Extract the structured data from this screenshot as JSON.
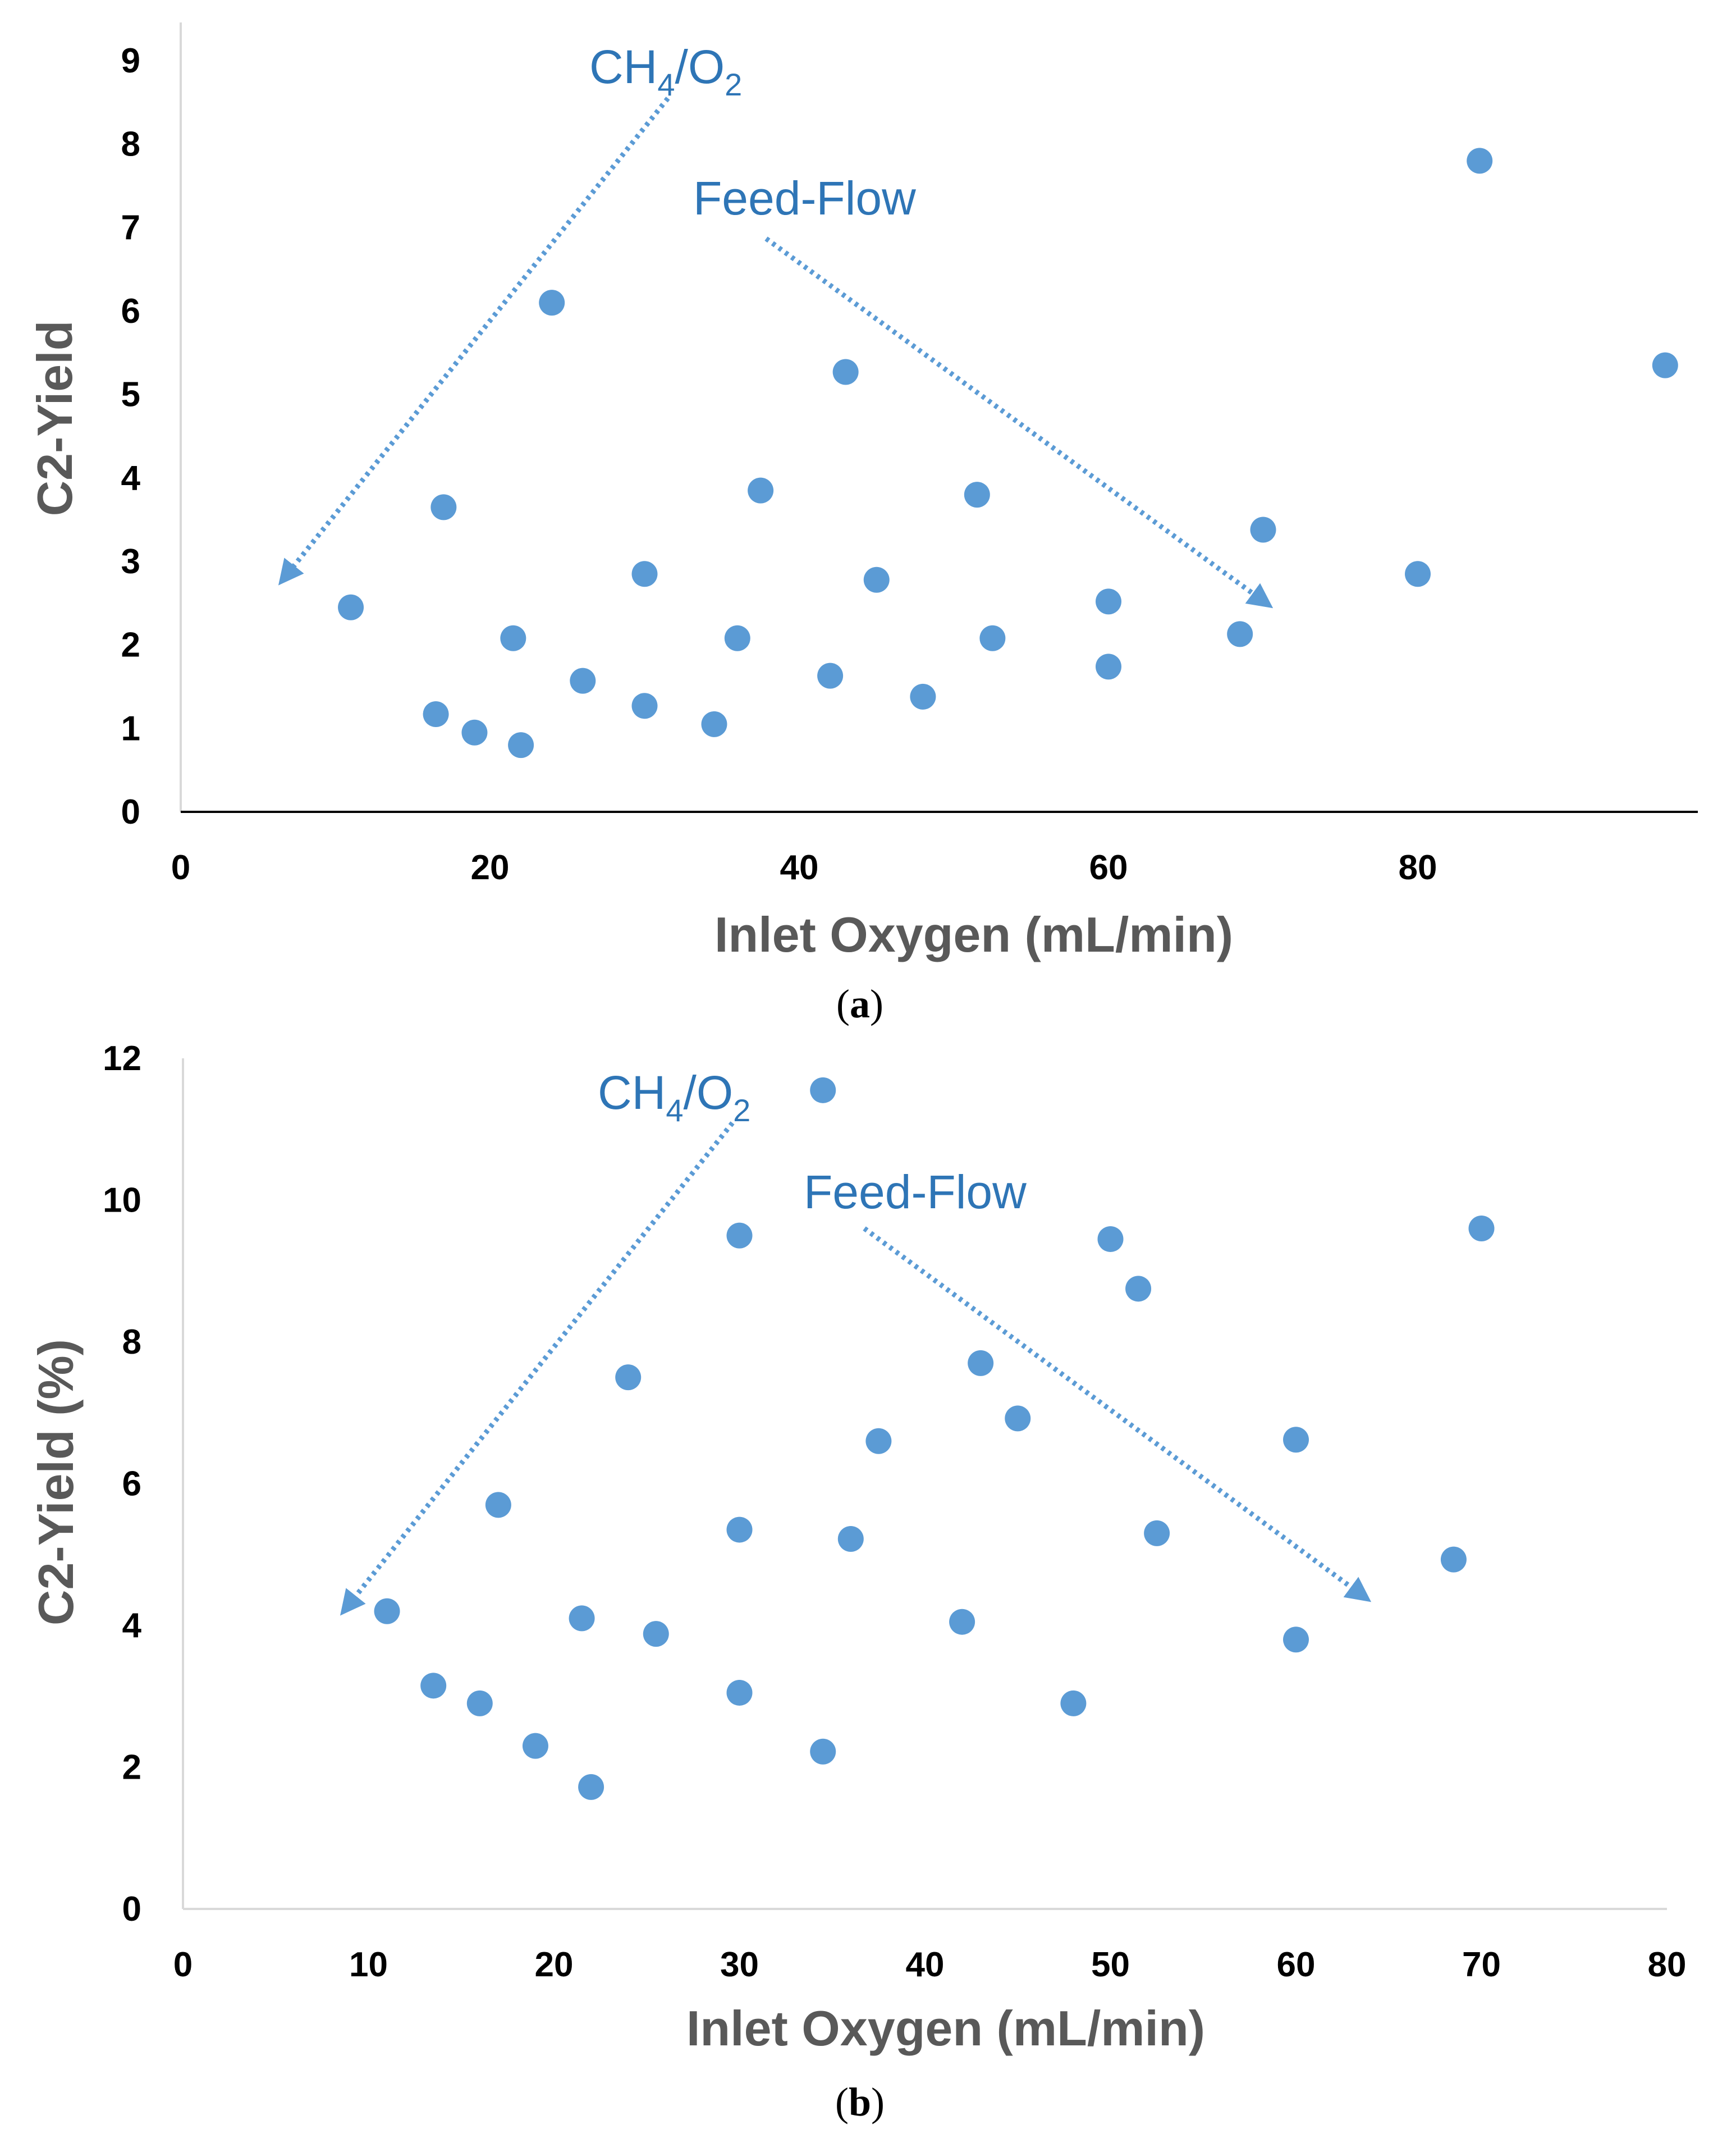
{
  "chart_data": [
    {
      "type": "scatter",
      "panel_label": "a",
      "xlabel": "Inlet Oxygen (mL/min)",
      "ylabel": "C2-Yield",
      "xlim": [
        0,
        98
      ],
      "ylim": [
        0,
        9
      ],
      "x_ticks": [
        "0",
        "20",
        "40",
        "60",
        "80"
      ],
      "y_ticks": [
        "0",
        "1",
        "2",
        "3",
        "4",
        "5",
        "6",
        "7",
        "8",
        "9"
      ],
      "color": "#5B9BD5",
      "annotations": [
        {
          "id": "ch4-o2",
          "base": "CH",
          "sub1": "4",
          "mid": "/O",
          "sub2": "2"
        },
        {
          "id": "feed-flow",
          "text": "Feed-Flow"
        }
      ],
      "series": [
        {
          "name": "C2-Yield",
          "points": [
            [
              11,
              2.45
            ],
            [
              16.5,
              1.17
            ],
            [
              17,
              3.65
            ],
            [
              19,
              0.95
            ],
            [
              21.5,
              2.08
            ],
            [
              22,
              0.8
            ],
            [
              24,
              6.1
            ],
            [
              26,
              1.57
            ],
            [
              30,
              2.85
            ],
            [
              30,
              1.27
            ],
            [
              34.5,
              1.05
            ],
            [
              36,
              2.08
            ],
            [
              37.5,
              3.85
            ],
            [
              42,
              1.63
            ],
            [
              43,
              5.27
            ],
            [
              45,
              2.78
            ],
            [
              48,
              1.38
            ],
            [
              51.5,
              3.8
            ],
            [
              52.5,
              2.08
            ],
            [
              60,
              2.52
            ],
            [
              60,
              1.74
            ],
            [
              68.5,
              2.13
            ],
            [
              70,
              3.38
            ],
            [
              80,
              2.85
            ],
            [
              84,
              7.8
            ],
            [
              96,
              5.35
            ]
          ]
        }
      ]
    },
    {
      "type": "scatter",
      "panel_label": "b",
      "xlabel": "Inlet Oxygen (mL/min)",
      "ylabel": "C2-Yield (%)",
      "xlim": [
        0,
        80
      ],
      "ylim": [
        0,
        12
      ],
      "x_ticks": [
        "0",
        "10",
        "20",
        "30",
        "40",
        "50",
        "60",
        "70",
        "80"
      ],
      "y_ticks": [
        "0",
        "2",
        "4",
        "6",
        "8",
        "10",
        "12"
      ],
      "color": "#5B9BD5",
      "annotations": [
        {
          "id": "ch4-o2",
          "base": "CH",
          "sub1": "4",
          "mid": "/O",
          "sub2": "2"
        },
        {
          "id": "feed-flow",
          "text": "Feed-Flow"
        }
      ],
      "series": [
        {
          "name": "C2-Yield (%)",
          "points": [
            [
              11,
              4.2
            ],
            [
              13.5,
              3.15
            ],
            [
              16,
              2.9
            ],
            [
              17,
              5.7
            ],
            [
              19,
              2.3
            ],
            [
              21.5,
              4.1
            ],
            [
              22,
              1.72
            ],
            [
              24,
              7.5
            ],
            [
              25.5,
              3.88
            ],
            [
              30,
              9.5
            ],
            [
              30,
              5.35
            ],
            [
              30,
              3.05
            ],
            [
              34.5,
              11.55
            ],
            [
              34.5,
              2.22
            ],
            [
              36,
              5.22
            ],
            [
              37.5,
              6.6
            ],
            [
              42,
              4.05
            ],
            [
              43,
              7.7
            ],
            [
              45,
              6.92
            ],
            [
              48,
              2.9
            ],
            [
              50,
              9.45
            ],
            [
              51.5,
              8.75
            ],
            [
              52.5,
              5.3
            ],
            [
              60,
              6.62
            ],
            [
              60,
              3.8
            ],
            [
              68.5,
              4.93
            ],
            [
              70,
              9.6
            ]
          ]
        }
      ]
    }
  ]
}
